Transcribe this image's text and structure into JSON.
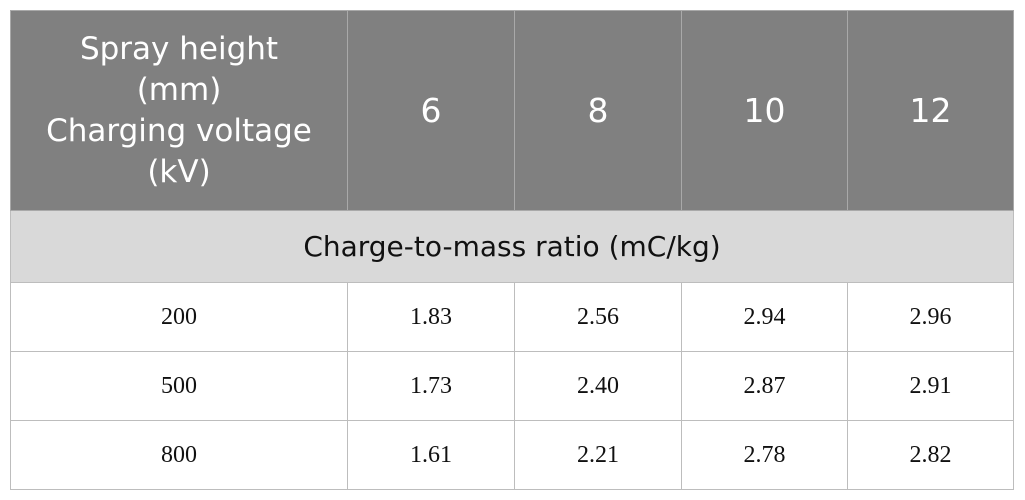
{
  "table": {
    "corner": [
      "Spray height",
      "(mm)",
      "Charging voltage",
      "(kV)"
    ],
    "columns": [
      "6",
      "8",
      "10",
      "12"
    ],
    "subheader": "Charge-to-mass ratio (mC/kg)",
    "rows": [
      [
        "200",
        "1.83",
        "2.56",
        "2.94",
        "2.96"
      ],
      [
        "500",
        "1.73",
        "2.40",
        "2.87",
        "2.91"
      ],
      [
        "800",
        "1.61",
        "2.21",
        "2.78",
        "2.82"
      ]
    ]
  }
}
